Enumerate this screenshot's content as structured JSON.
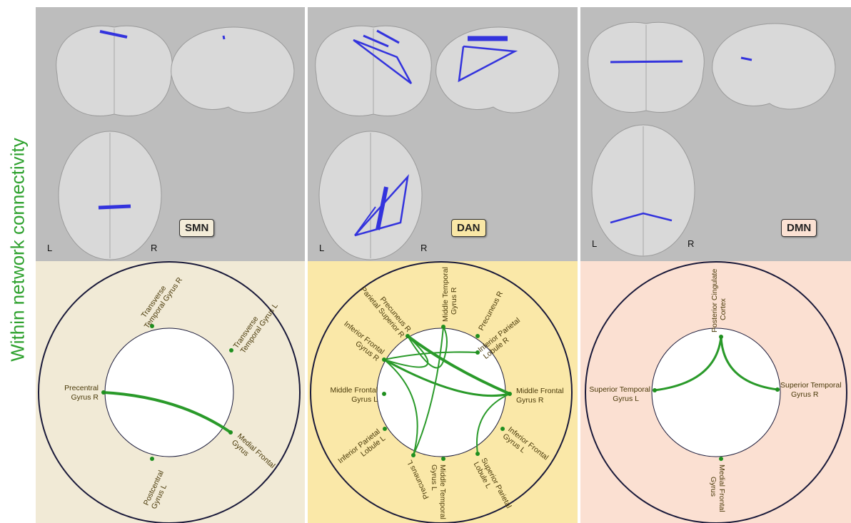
{
  "side_title": "Within network connectivity",
  "networks": [
    {
      "label": "SMN",
      "label_bg": "#f3ecd8",
      "left": "L",
      "right": "R",
      "regions": [
        {
          "line1": "Transverse",
          "line2": "Temporal Gyrus R"
        },
        {
          "line1": "Transverse",
          "line2": "Temporal Gyrus L"
        },
        {
          "line1": "Precentral",
          "line2": "Gyrus R"
        },
        {
          "line1": "Medial Frontal",
          "line2": "Gyrus"
        },
        {
          "line1": "Postcentral",
          "line2": "Gyrus L"
        }
      ]
    },
    {
      "label": "DAN",
      "label_bg": "#f9e7a6",
      "left": "L",
      "right": "R",
      "regions": [
        {
          "line1": "Middle Temporal",
          "line2": "Gyrus R"
        },
        {
          "line1": "Precuneus R",
          "line2": ""
        },
        {
          "line1": "Inferior Parietal",
          "line2": "Lobule R"
        },
        {
          "line1": "Middle Frontal",
          "line2": "Gyrus R"
        },
        {
          "line1": "Inferior Frontal",
          "line2": "Gyrus L"
        },
        {
          "line1": "Superior Parietal",
          "line2": "Lobule L"
        },
        {
          "line1": "Middle Temporal",
          "line2": "Gyrus L"
        },
        {
          "line1": "Precuneus L",
          "line2": ""
        },
        {
          "line1": "Inferior Parietal",
          "line2": "Lobule L"
        },
        {
          "line1": "Middle Frontal",
          "line2": "Gyrus L"
        },
        {
          "line1": "Inferior Frontal",
          "line2": "Gyrus R"
        },
        {
          "line1": "Precuneus R",
          "line2": "Parietal Superior R"
        }
      ]
    },
    {
      "label": "DMN",
      "label_bg": "#fbe1d3",
      "left": "L",
      "right": "R",
      "regions": [
        {
          "line1": "Posterior Cingulate",
          "line2": "Cortex"
        },
        {
          "line1": "Superior Temporal",
          "line2": "Gyrus R"
        },
        {
          "line1": "Medial Frontal",
          "line2": "Gyrus"
        },
        {
          "line1": "Superior Temporal",
          "line2": "Gyrus L"
        }
      ]
    }
  ],
  "colors": {
    "connection": "#2a9a2a",
    "node": "#1f8f1f",
    "brain_edge": "#3333dd",
    "panel_top": "#bdbdbd",
    "title": "#2ea12e"
  }
}
